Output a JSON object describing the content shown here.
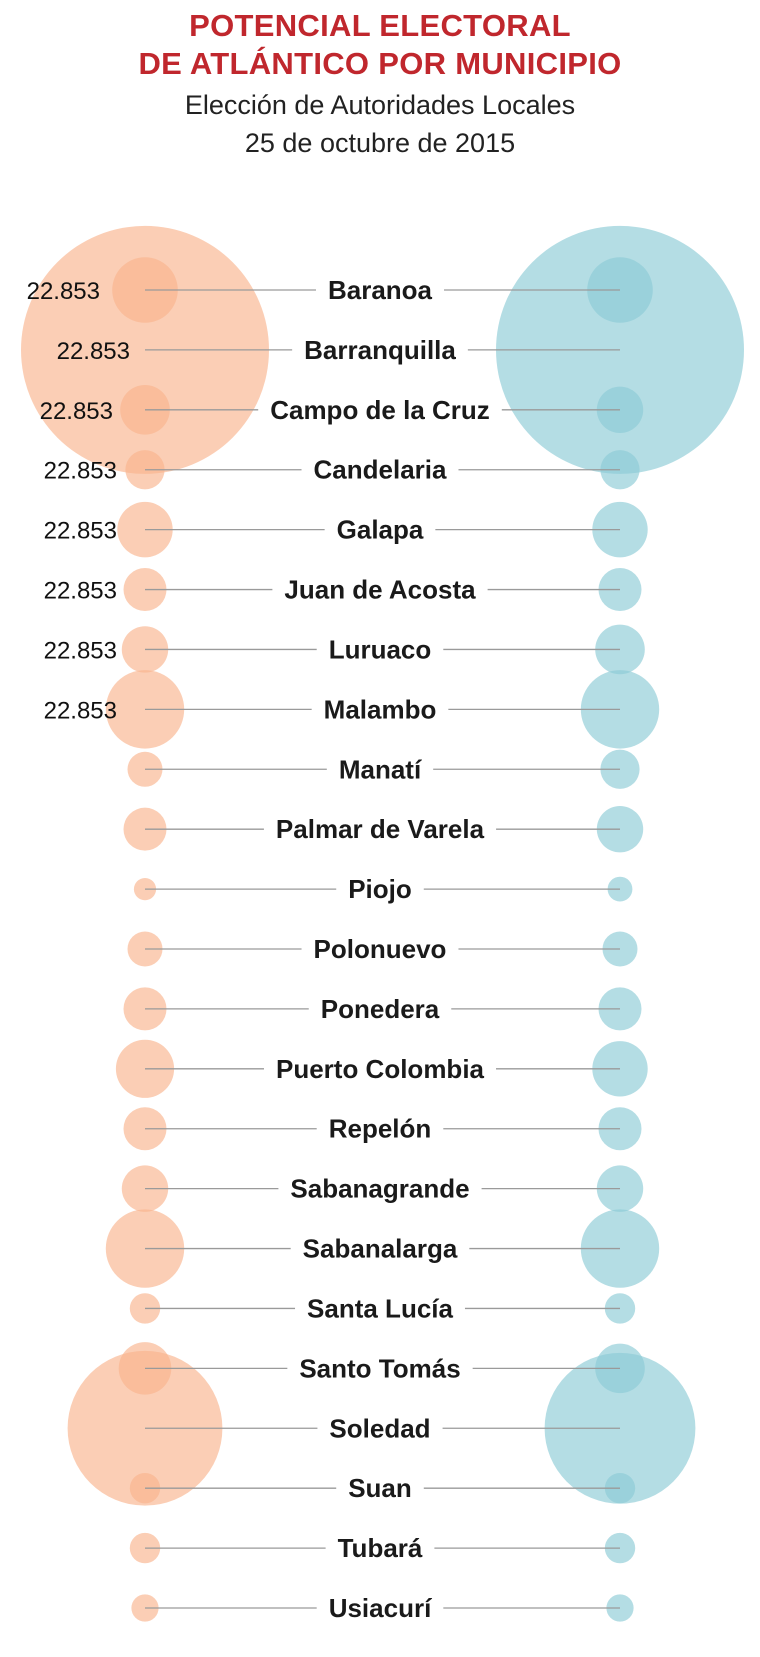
{
  "header": {
    "title_line1": "POTENCIAL ELECTORAL",
    "title_line2": "DE ATLÁNTICO POR MUNICIPIO",
    "subtitle_line1": "Elección de Autoridades Locales",
    "subtitle_line2": "25 de octubre de 2015"
  },
  "colors": {
    "left_bubble": "#f9b48e",
    "right_bubble": "#8ccbd6",
    "connector": "#9a9a9a",
    "label_text": "#1a1a1a",
    "title": "#c0272d"
  },
  "chart_data": {
    "type": "scatter",
    "title": "POTENCIAL ELECTORAL DE ATLÁNTICO POR MUNICIPIO",
    "subtitle": "Elección de Autoridades Locales 25 de octubre de 2015",
    "categories": [
      "Baranoa",
      "Barranquilla",
      "Campo de la Cruz",
      "Candelaria",
      "Galapa",
      "Juan de Acosta",
      "Luruaco",
      "Malambo",
      "Manatí",
      "Palmar de Varela",
      "Piojo",
      "Polonuevo",
      "Ponedera",
      "Puerto Colombia",
      "Repelón",
      "Sabanagrande",
      "Sabanalarga",
      "Santa Lucía",
      "Santo Tomás",
      "Soledad",
      "Suan",
      "Tubará",
      "Usiacurí"
    ],
    "value_labels": [
      "22.853",
      "22.853",
      "22.853",
      "22.853",
      "22.853",
      "22.853",
      "22.853",
      "22.853"
    ],
    "series": [
      {
        "values": [
          7,
          100,
          4,
          2.5,
          5,
          3,
          3.5,
          10,
          2,
          3,
          0.8,
          2,
          3,
          5.5,
          3,
          3.5,
          10,
          1.5,
          4.5,
          39,
          1.5,
          1.5,
          1.2
        ]
      },
      {
        "values": [
          7,
          100,
          3.5,
          2.5,
          5,
          3,
          4,
          10,
          2.5,
          3.5,
          1,
          2,
          3,
          5,
          3,
          3.5,
          10,
          1.5,
          4,
          37,
          1.5,
          1.5,
          1.2
        ]
      }
    ]
  }
}
